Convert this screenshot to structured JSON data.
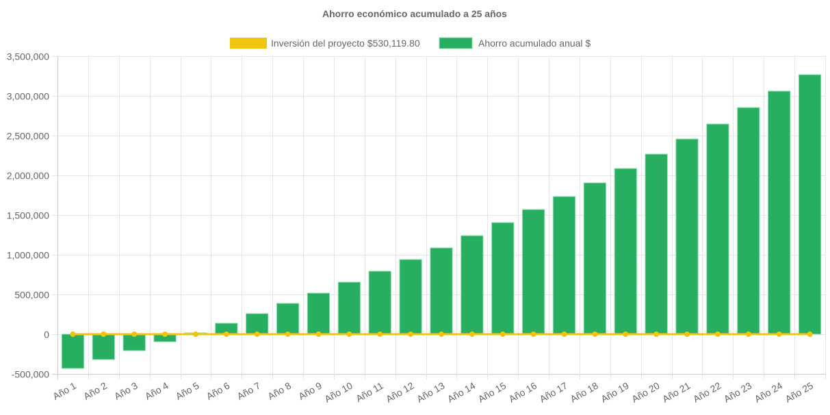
{
  "chart_data": {
    "type": "bar",
    "title": "Ahorro económico acumulado a 25 años",
    "categories": [
      "Año 1",
      "Año 2",
      "Año 3",
      "Año 4",
      "Año 5",
      "Año 6",
      "Año 7",
      "Año 8",
      "Año 9",
      "Año 10",
      "Año 11",
      "Año 12",
      "Año 13",
      "Año 14",
      "Año 15",
      "Año 16",
      "Año 17",
      "Año 18",
      "Año 19",
      "Año 20",
      "Año 21",
      "Año 22",
      "Año 23",
      "Año 24",
      "Año 25"
    ],
    "series": [
      {
        "name": "Inversión del proyecto $530,119.80",
        "type": "line",
        "color": "#f1c40f",
        "values": [
          0,
          0,
          0,
          0,
          0,
          0,
          0,
          0,
          0,
          0,
          0,
          0,
          0,
          0,
          0,
          0,
          0,
          0,
          0,
          0,
          0,
          0,
          0,
          0,
          0
        ]
      },
      {
        "name": "Ahorro acumulado anual $",
        "type": "bar",
        "color": "#27ae60",
        "values": [
          -431000,
          -319000,
          -207000,
          -95000,
          17000,
          138000,
          259000,
          388000,
          517000,
          655000,
          793000,
          940000,
          1086000,
          1241000,
          1405000,
          1569000,
          1733000,
          1905000,
          2086000,
          2267000,
          2457000,
          2646000,
          2853000,
          3060000,
          3267000
        ]
      }
    ],
    "yticks": [
      "3,500,000",
      "3,000,000",
      "2,500,000",
      "2,000,000",
      "1,500,000",
      "1,000,000",
      "500,000",
      "0",
      "-500,000"
    ],
    "ylim": [
      -500000,
      3500000
    ],
    "grid": true,
    "legend": "top"
  }
}
